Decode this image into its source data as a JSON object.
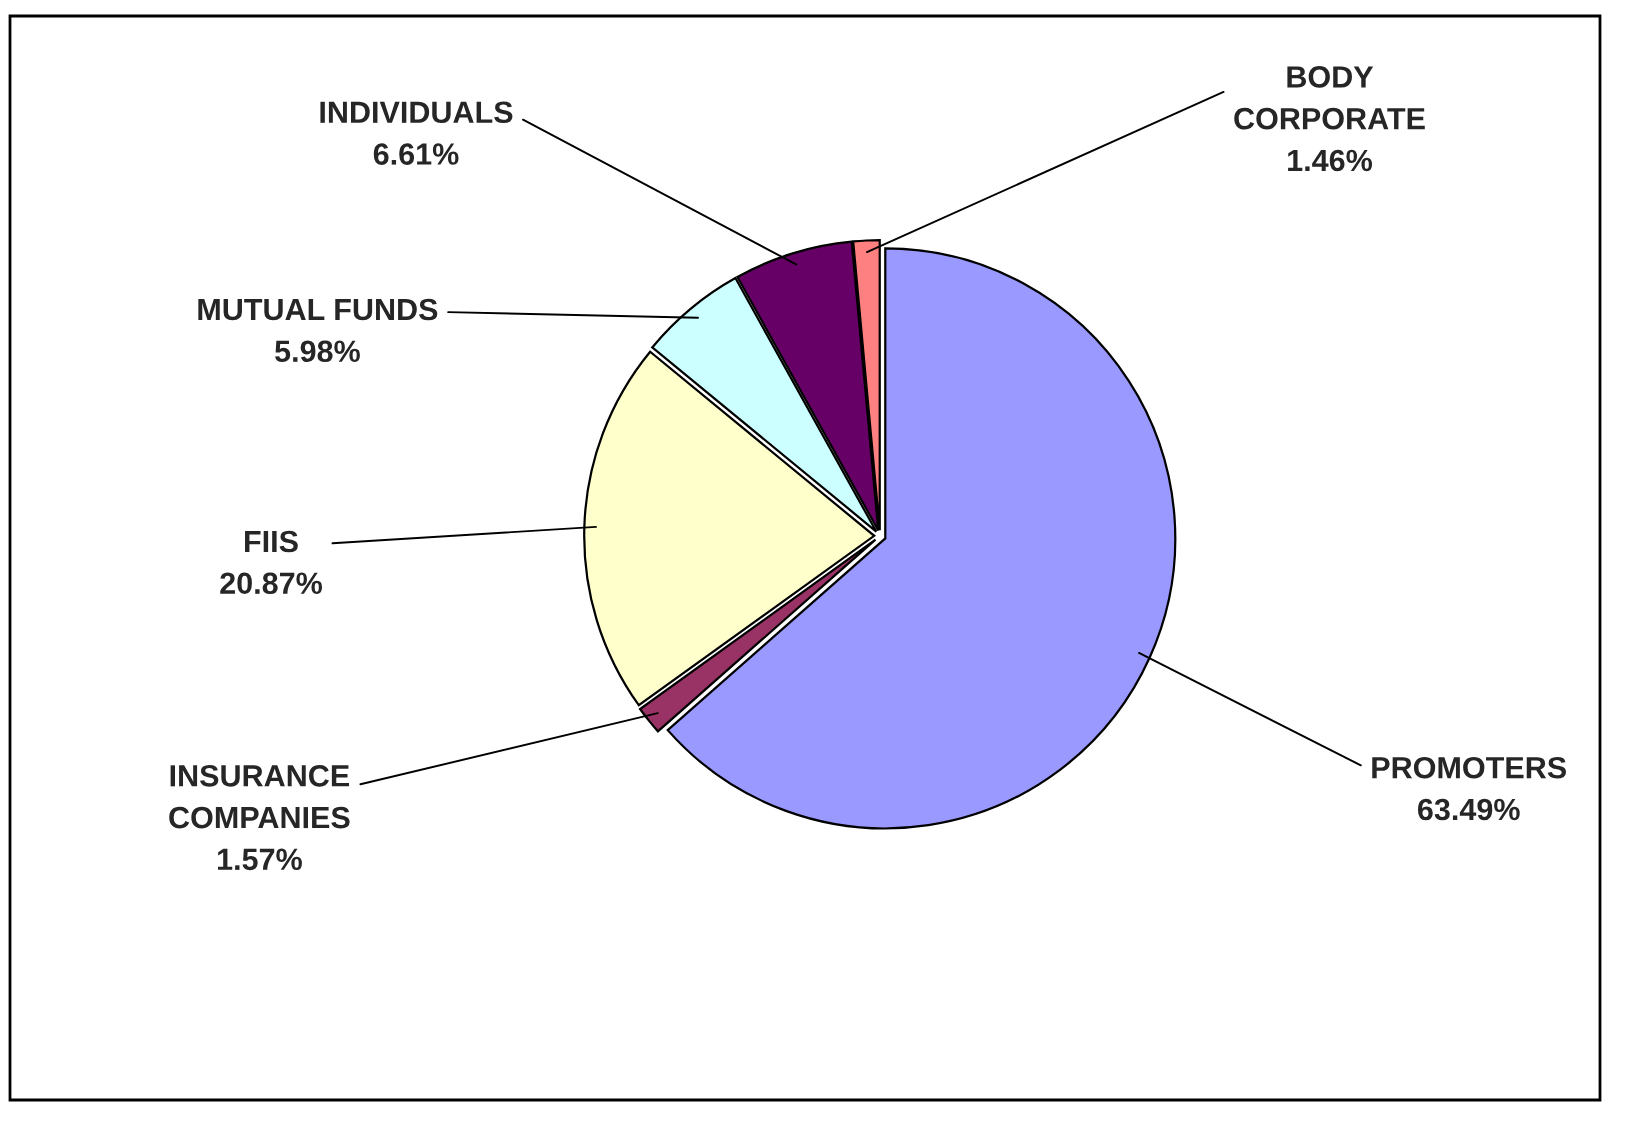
{
  "chart_data": {
    "type": "pie",
    "categories": [
      "PROMOTERS",
      "INSURANCE COMPANIES",
      "FIIS",
      "MUTUAL FUNDS",
      "INDIVIDUALS",
      "BODY CORPORATE"
    ],
    "values": [
      63.49,
      1.57,
      20.87,
      5.98,
      6.61,
      1.46
    ],
    "value_labels": [
      "63.49%",
      "1.57%",
      "20.87%",
      "5.98%",
      "6.61%",
      "1.46%"
    ],
    "colors": [
      "#9999ff",
      "#993366",
      "#ffffcc",
      "#ccffff",
      "#660066",
      "#ff8080"
    ],
    "legend": false
  }
}
